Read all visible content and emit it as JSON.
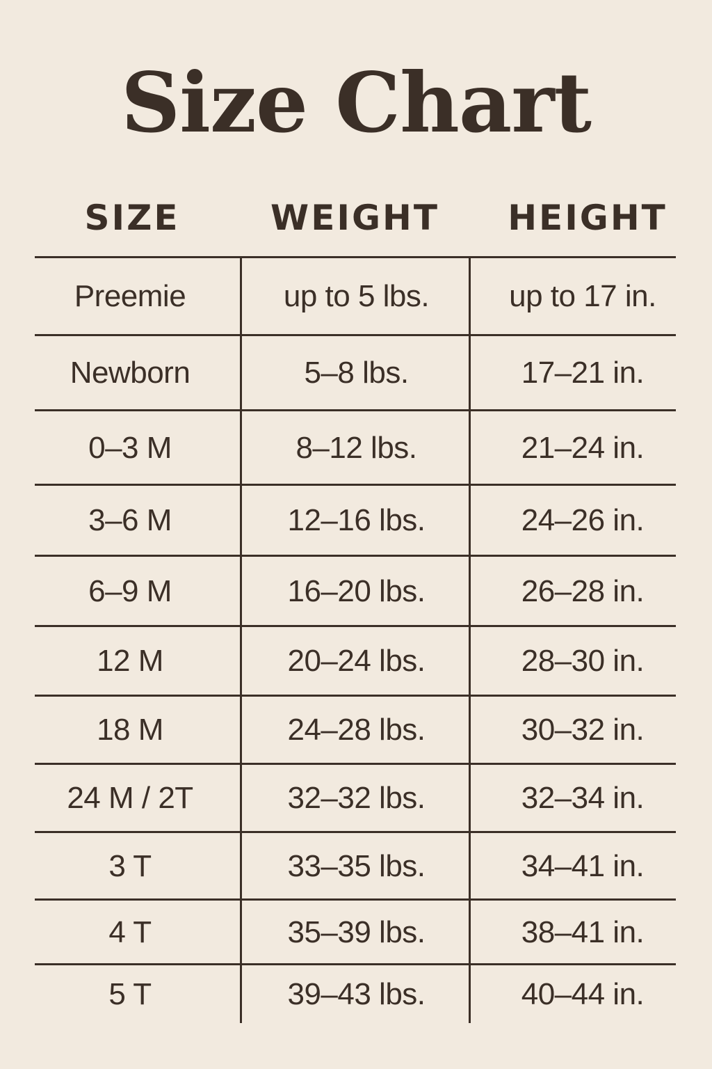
{
  "title": "Size Chart",
  "headers": [
    "SIZE",
    "WEIGHT",
    "HEIGHT"
  ],
  "rows": [
    [
      "Preemie",
      "up to 5 lbs.",
      "up to 17 in."
    ],
    [
      "Newborn",
      "5–8 lbs.",
      "17–21 in."
    ],
    [
      "0–3 M",
      "8–12 lbs.",
      "21–24 in."
    ],
    [
      "3–6 M",
      "12–16 lbs.",
      "24–26 in."
    ],
    [
      "6–9 M",
      "16–20 lbs.",
      "26–28 in."
    ],
    [
      "12 M",
      "20–24 lbs.",
      "28–30 in."
    ],
    [
      "18 M",
      "24–28 lbs.",
      "30–32 in."
    ],
    [
      "24 M / 2T",
      "32–32 lbs.",
      "32–34 in."
    ],
    [
      "3 T",
      "33–35 lbs.",
      "34–41 in."
    ],
    [
      "4 T",
      "35–39 lbs.",
      "38–41 in."
    ],
    [
      "5 T",
      "39–43 lbs.",
      "40–44 in."
    ]
  ],
  "colors": {
    "background": "#f2eadf",
    "text": "#3b2f27"
  }
}
